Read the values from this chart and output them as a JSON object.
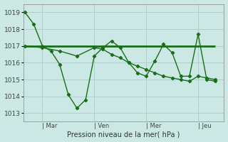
{
  "background_color": "#cce8e4",
  "grid_color": "#aacccc",
  "line_color": "#1a6e1a",
  "ylabel": "Pression niveau de la mer( hPa )",
  "yticks": [
    1013,
    1014,
    1015,
    1016,
    1017,
    1018,
    1019
  ],
  "ylim": [
    1012.5,
    1019.5
  ],
  "xtick_labels": [
    "| Mar",
    "| Ven",
    "| Mer",
    "| Jeu"
  ],
  "xtick_positions": [
    1,
    4,
    7,
    10
  ],
  "xlim": [
    -0.1,
    11.5
  ],
  "series1_x": [
    0,
    0.5,
    1.0,
    1.5,
    2.0,
    2.5,
    3.0,
    3.5,
    4.0,
    4.5,
    5.0,
    5.5,
    6.0,
    6.5,
    7.0,
    7.5,
    8.0,
    8.5,
    9.0,
    9.5,
    10.0,
    10.5,
    11.0
  ],
  "series1_y": [
    1019.0,
    1018.3,
    1017.0,
    1016.7,
    1015.9,
    1014.1,
    1013.3,
    1013.8,
    1016.4,
    1016.9,
    1017.3,
    1016.9,
    1016.0,
    1015.4,
    1015.2,
    1016.1,
    1017.1,
    1016.6,
    1015.2,
    1015.2,
    1017.7,
    1015.0,
    1014.9
  ],
  "series2_x": [
    0,
    11.0
  ],
  "series2_y": [
    1017.0,
    1017.0
  ],
  "series3_x": [
    0,
    1.0,
    2.0,
    3.0,
    4.0,
    4.5,
    5.0,
    5.5,
    6.0,
    6.5,
    7.0,
    7.5,
    8.0,
    8.5,
    9.0,
    9.5,
    10.0,
    10.5,
    11.0
  ],
  "series3_y": [
    1017.0,
    1016.9,
    1016.7,
    1016.4,
    1016.9,
    1016.8,
    1016.5,
    1016.3,
    1016.0,
    1015.8,
    1015.6,
    1015.4,
    1015.2,
    1015.1,
    1015.0,
    1014.9,
    1015.2,
    1015.1,
    1015.0
  ],
  "figsize": [
    3.2,
    2.0
  ],
  "dpi": 100
}
